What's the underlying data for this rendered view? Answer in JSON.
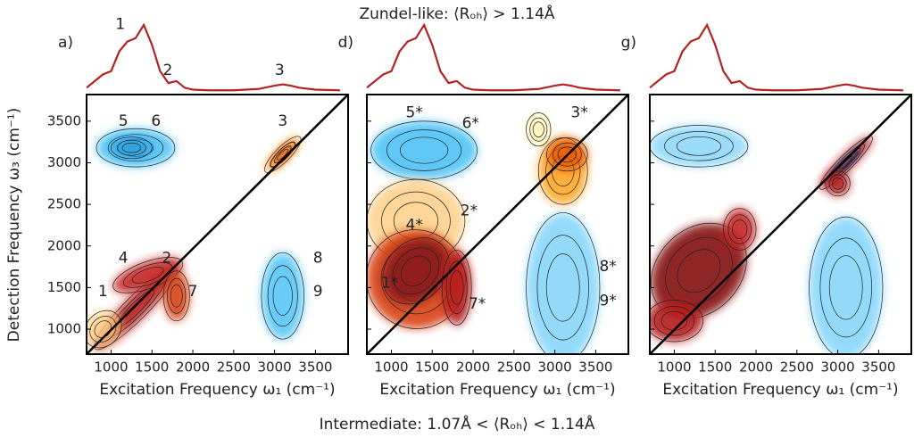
{
  "title": "Zundel-like: ⟨Rₒₕ⟩ > 1.14Å",
  "footer": "Intermediate: 1.07Å < ⟨Rₒₕ⟩ < 1.14Å",
  "ylabel": "Detection Frequency ω₃ (cm⁻¹)",
  "chart_data": [
    {
      "type": "contour",
      "panel_label": "a)",
      "xlabel": "Excitation Frequency ω₁ (cm⁻¹)",
      "xlim": [
        700,
        3900
      ],
      "ylim": [
        700,
        3820
      ],
      "xticks": [
        1000,
        1500,
        2000,
        2500,
        3000,
        3500
      ],
      "yticks": [
        1000,
        1500,
        2000,
        2500,
        3000,
        3500
      ],
      "spectrum": {
        "color": "#b22222",
        "ylim": [
          0,
          1
        ],
        "x": [
          700,
          800,
          900,
          1000,
          1100,
          1200,
          1300,
          1400,
          1500,
          1600,
          1700,
          1800,
          1900,
          2000,
          2200,
          2500,
          2800,
          3000,
          3100,
          3200,
          3300,
          3500,
          3800
        ],
        "values": [
          0.05,
          0.15,
          0.25,
          0.3,
          0.6,
          0.75,
          0.8,
          1.0,
          0.7,
          0.3,
          0.12,
          0.15,
          0.05,
          0.02,
          0.01,
          0.01,
          0.03,
          0.08,
          0.1,
          0.08,
          0.05,
          0.02,
          0.01
        ],
        "peak_labels": [
          "1",
          "2",
          "3"
        ]
      },
      "annotations": [
        "5",
        "6",
        "3",
        "4",
        "2",
        "8",
        "1",
        "7",
        "9"
      ]
    },
    {
      "type": "contour",
      "panel_label": "d)",
      "xlabel": "Excitation Frequency ω₁ (cm⁻¹)",
      "xlim": [
        700,
        3900
      ],
      "ylim": [
        700,
        3820
      ],
      "xticks": [
        1000,
        1500,
        2000,
        2500,
        3000,
        3500
      ],
      "yticks": [
        1000,
        1500,
        2000,
        2500,
        3000,
        3500
      ],
      "spectrum": {
        "color": "#b22222",
        "ylim": [
          0,
          1
        ],
        "x": [
          700,
          800,
          900,
          1000,
          1100,
          1200,
          1300,
          1400,
          1500,
          1600,
          1700,
          1800,
          1900,
          2000,
          2200,
          2500,
          2800,
          3000,
          3100,
          3200,
          3300,
          3500,
          3800
        ],
        "values": [
          0.05,
          0.15,
          0.25,
          0.3,
          0.6,
          0.75,
          0.8,
          1.0,
          0.7,
          0.3,
          0.12,
          0.15,
          0.05,
          0.02,
          0.01,
          0.01,
          0.03,
          0.08,
          0.1,
          0.08,
          0.05,
          0.02,
          0.01
        ]
      },
      "annotations": [
        "5*",
        "6*",
        "3*",
        "4*",
        "2*",
        "8*",
        "1*",
        "7*",
        "9*"
      ]
    },
    {
      "type": "contour",
      "panel_label": "g)",
      "xlabel": "Excitation Frequency ω₁ (cm⁻¹)",
      "xlim": [
        700,
        3900
      ],
      "ylim": [
        700,
        3820
      ],
      "xticks": [
        1000,
        1500,
        2000,
        2500,
        3000,
        3500
      ],
      "yticks": [
        1000,
        1500,
        2000,
        2500,
        3000,
        3500
      ],
      "spectrum": {
        "color": "#b22222",
        "ylim": [
          0,
          1
        ],
        "x": [
          700,
          800,
          900,
          1000,
          1100,
          1200,
          1300,
          1400,
          1500,
          1600,
          1700,
          1800,
          1900,
          2000,
          2200,
          2500,
          2800,
          3000,
          3100,
          3200,
          3300,
          3500,
          3800
        ],
        "values": [
          0.05,
          0.15,
          0.25,
          0.3,
          0.6,
          0.75,
          0.8,
          1.0,
          0.7,
          0.3,
          0.12,
          0.15,
          0.05,
          0.02,
          0.01,
          0.01,
          0.03,
          0.08,
          0.1,
          0.08,
          0.05,
          0.02,
          0.01
        ]
      },
      "annotations": []
    }
  ]
}
